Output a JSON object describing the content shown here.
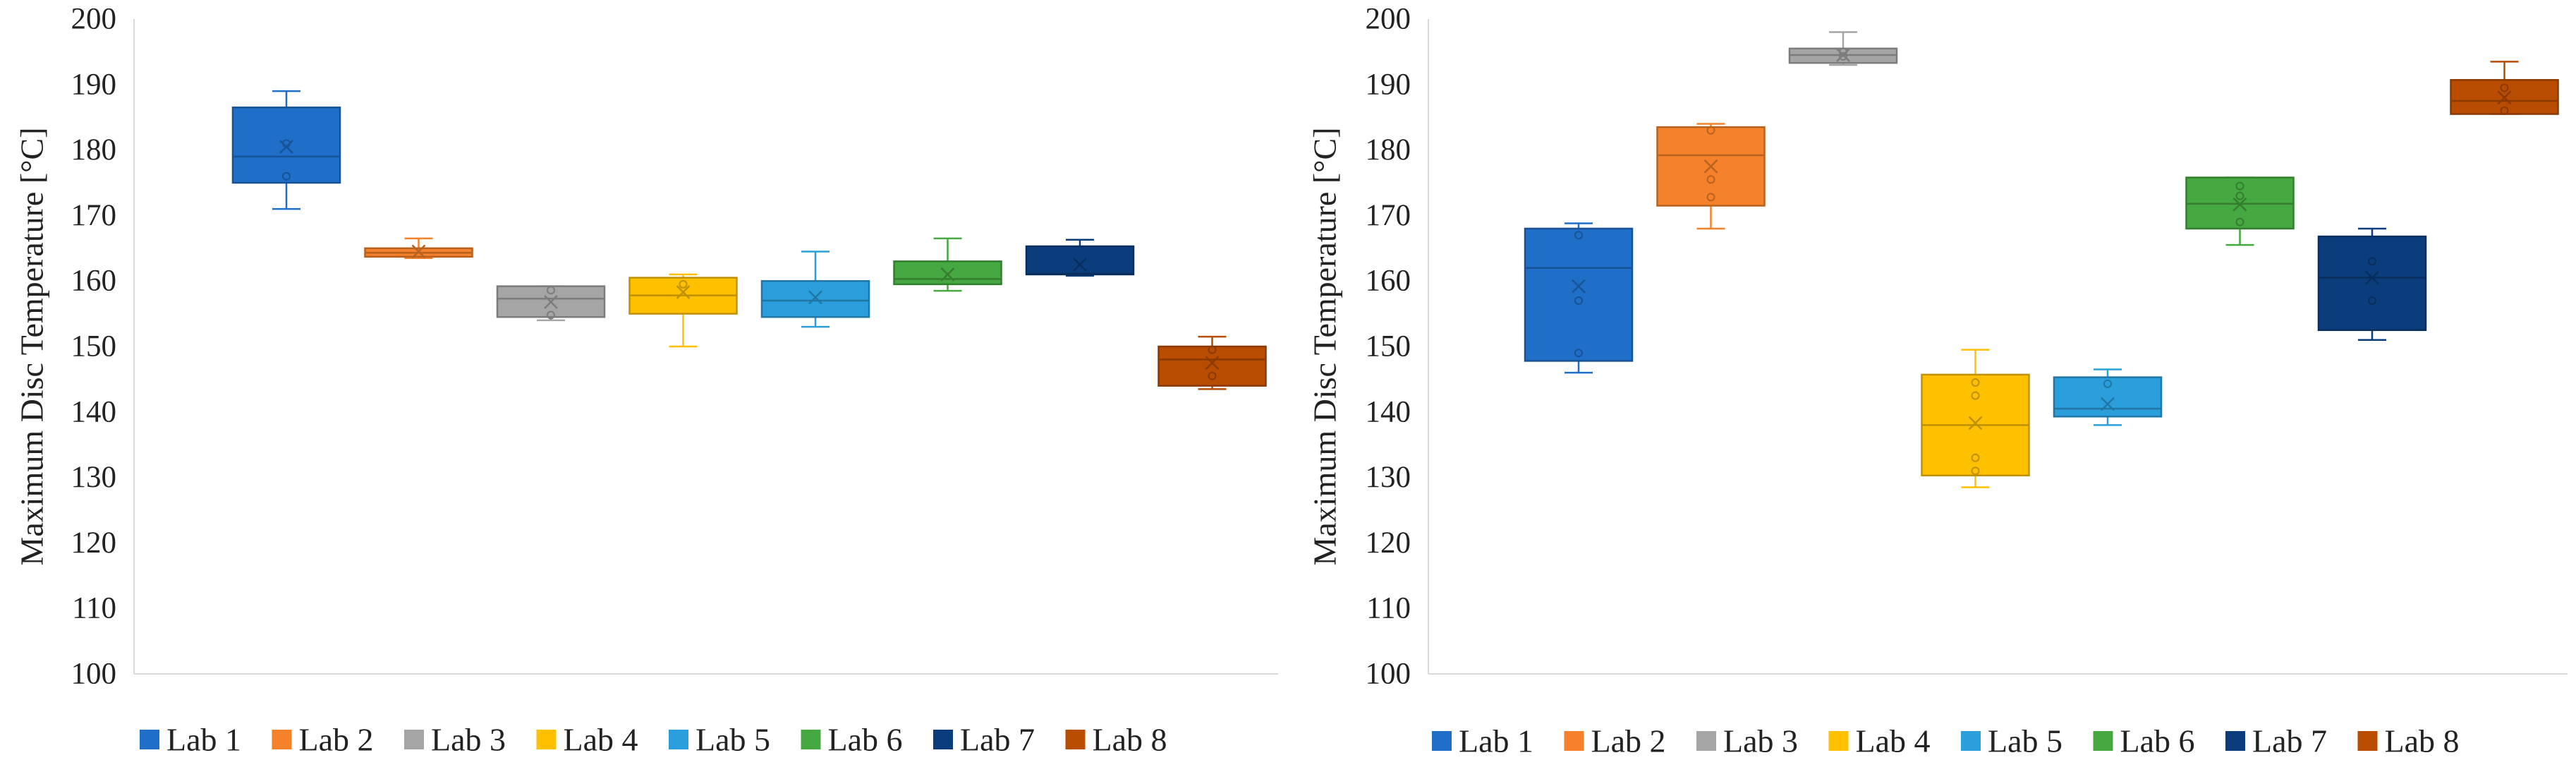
{
  "chart_data": [
    {
      "type": "box",
      "ylabel": "Maximum Disc Temperature [°C]",
      "ylim": [
        100,
        200
      ],
      "yticks": [
        100,
        110,
        120,
        130,
        140,
        150,
        160,
        170,
        180,
        190,
        200
      ],
      "grid": false,
      "legend_position": "bottom",
      "series": [
        {
          "name": "Lab 1",
          "color": "#1F6FC8",
          "min": 171.0,
          "q1": 175.0,
          "median": 179.0,
          "q3": 186.5,
          "max": 189.0,
          "mean": 180.5,
          "points": [
            176.0,
            181.0
          ]
        },
        {
          "name": "Lab 2",
          "color": "#F5822B",
          "min": 163.5,
          "q1": 163.7,
          "median": 164.3,
          "q3": 165.0,
          "max": 166.5,
          "mean": 164.5,
          "points": []
        },
        {
          "name": "Lab 3",
          "color": "#A5A5A5",
          "min": 154.0,
          "q1": 154.5,
          "median": 157.3,
          "q3": 159.2,
          "max": 159.2,
          "mean": 156.8,
          "points": [
            154.8,
            158.6
          ]
        },
        {
          "name": "Lab 4",
          "color": "#FFC000",
          "min": 150.0,
          "q1": 155.0,
          "median": 157.8,
          "q3": 160.5,
          "max": 161.0,
          "mean": 158.3,
          "points": [
            159.5
          ]
        },
        {
          "name": "Lab 5",
          "color": "#2B9FDC",
          "min": 153.0,
          "q1": 154.5,
          "median": 157.0,
          "q3": 160.0,
          "max": 164.5,
          "mean": 157.5,
          "points": []
        },
        {
          "name": "Lab 6",
          "color": "#46A840",
          "min": 158.5,
          "q1": 159.5,
          "median": 160.3,
          "q3": 163.0,
          "max": 166.5,
          "mean": 161.0,
          "points": []
        },
        {
          "name": "Lab 7",
          "color": "#0B3D7C",
          "min": 160.8,
          "q1": 161.0,
          "median": 161.1,
          "q3": 165.3,
          "max": 166.3,
          "mean": 162.5,
          "points": []
        },
        {
          "name": "Lab 8",
          "color": "#B84C00",
          "min": 143.5,
          "q1": 144.0,
          "median": 148.0,
          "q3": 150.0,
          "max": 151.5,
          "mean": 147.5,
          "points": [
            145.5,
            149.5
          ]
        }
      ],
      "categories": [
        "Lab 1",
        "Lab 2",
        "Lab 3",
        "Lab 4",
        "Lab 5",
        "Lab 6",
        "Lab 7",
        "Lab 8"
      ]
    },
    {
      "type": "box",
      "ylabel": "Maximum Disc Temperature [°C]",
      "ylim": [
        100,
        200
      ],
      "yticks": [
        100,
        110,
        120,
        130,
        140,
        150,
        160,
        170,
        180,
        190,
        200
      ],
      "grid": false,
      "legend_position": "bottom",
      "series": [
        {
          "name": "Lab 1",
          "color": "#1F6FC8",
          "min": 146.0,
          "q1": 147.8,
          "median": 162.0,
          "q3": 168.0,
          "max": 168.8,
          "mean": 159.2,
          "points": [
            149.0,
            157.0,
            167.0
          ]
        },
        {
          "name": "Lab 2",
          "color": "#F5822B",
          "min": 168.0,
          "q1": 171.5,
          "median": 179.2,
          "q3": 183.5,
          "max": 184.0,
          "mean": 177.5,
          "points": [
            172.8,
            175.5,
            183.0
          ]
        },
        {
          "name": "Lab 3",
          "color": "#A5A5A5",
          "min": 193.0,
          "q1": 193.3,
          "median": 194.5,
          "q3": 195.5,
          "max": 198.0,
          "mean": 194.5,
          "points": [
            194.3,
            195.0
          ]
        },
        {
          "name": "Lab 4",
          "color": "#FFC000",
          "min": 128.5,
          "q1": 130.3,
          "median": 138.0,
          "q3": 145.7,
          "max": 149.5,
          "mean": 138.3,
          "points": [
            131.0,
            133.0,
            142.5,
            144.5
          ]
        },
        {
          "name": "Lab 5",
          "color": "#2B9FDC",
          "min": 138.0,
          "q1": 139.3,
          "median": 140.5,
          "q3": 145.3,
          "max": 146.5,
          "mean": 141.2,
          "points": [
            144.3
          ]
        },
        {
          "name": "Lab 6",
          "color": "#46A840",
          "min": 165.5,
          "q1": 168.0,
          "median": 171.8,
          "q3": 175.8,
          "max": 175.8,
          "mean": 171.7,
          "points": [
            169.0,
            173.0,
            174.5
          ]
        },
        {
          "name": "Lab 7",
          "color": "#0B3D7C",
          "min": 151.0,
          "q1": 152.5,
          "median": 160.5,
          "q3": 166.8,
          "max": 168.0,
          "mean": 160.5,
          "points": [
            157.0,
            163.0
          ]
        },
        {
          "name": "Lab 8",
          "color": "#B84C00",
          "min": 185.5,
          "q1": 185.5,
          "median": 187.5,
          "q3": 190.7,
          "max": 193.5,
          "mean": 188.0,
          "points": [
            186.0,
            189.5
          ]
        }
      ],
      "categories": [
        "Lab 1",
        "Lab 2",
        "Lab 3",
        "Lab 4",
        "Lab 5",
        "Lab 6",
        "Lab 7",
        "Lab 8"
      ]
    }
  ]
}
